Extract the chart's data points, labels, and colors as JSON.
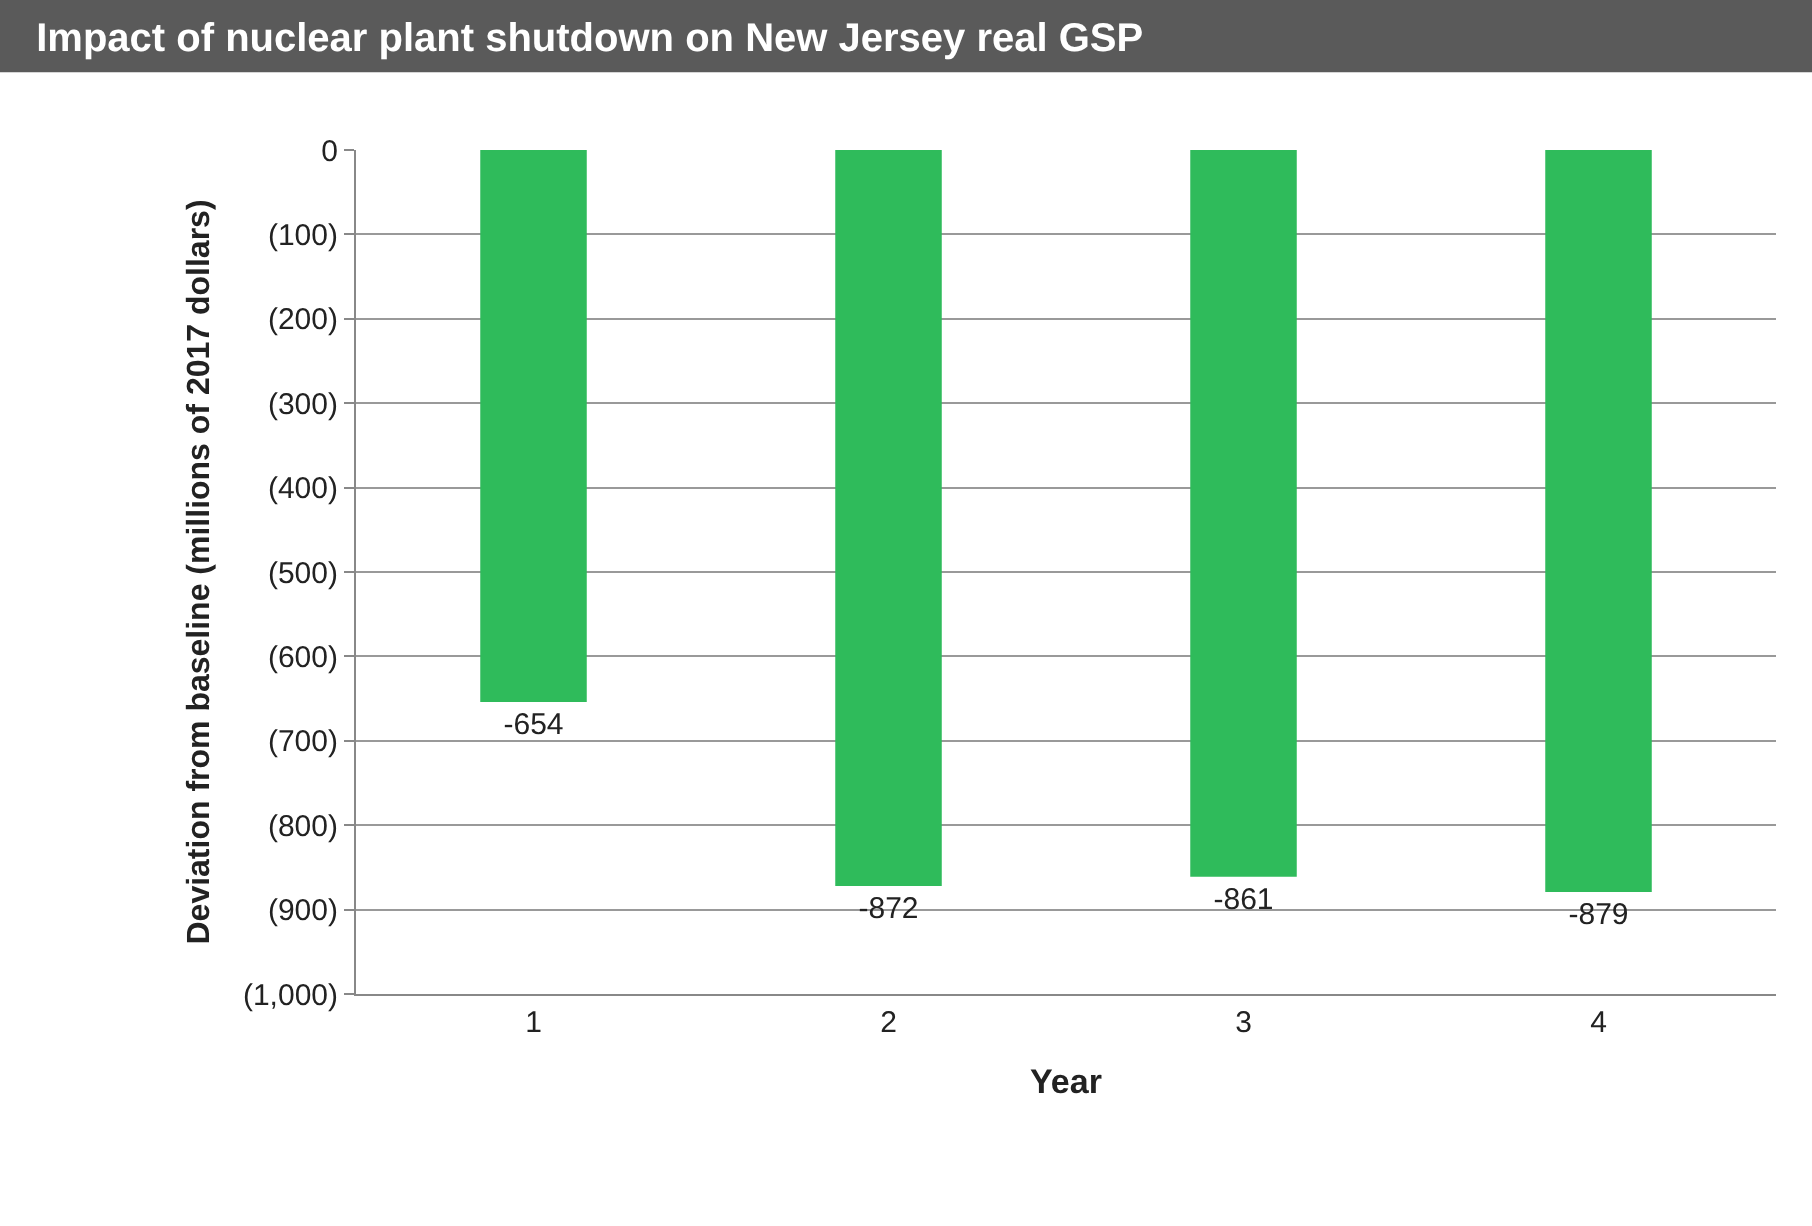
{
  "chart_data": {
    "type": "bar",
    "title": "Impact of nuclear plant shutdown on New Jersey real GSP",
    "xlabel": "Year",
    "ylabel": "Deviation from baseline (millions of 2017 dollars)",
    "categories": [
      "1",
      "2",
      "3",
      "4"
    ],
    "values": [
      -654,
      -872,
      -861,
      -879
    ],
    "color": "#2fbb5b",
    "data_labels": true,
    "ylim": [
      -1000,
      0
    ],
    "yticks": [
      0,
      {
        "value": -100,
        "label": "(100)"
      },
      {
        "value": -200,
        "label": "(200)"
      },
      {
        "value": -300,
        "label": "(300)"
      },
      {
        "value": -400,
        "label": "(400)"
      },
      {
        "value": -500,
        "label": "(500)"
      },
      {
        "value": -600,
        "label": "(600)"
      },
      {
        "value": -700,
        "label": "(700)"
      },
      {
        "value": -800,
        "label": "(800)"
      },
      {
        "value": -900,
        "label": "(900)"
      },
      {
        "value": -1000,
        "label": "(1,000)"
      }
    ],
    "grid": "y",
    "legend": false
  }
}
